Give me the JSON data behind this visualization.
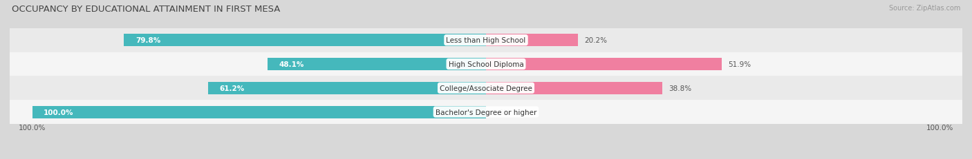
{
  "title": "OCCUPANCY BY EDUCATIONAL ATTAINMENT IN FIRST MESA",
  "source": "Source: ZipAtlas.com",
  "categories": [
    "Less than High School",
    "High School Diploma",
    "College/Associate Degree",
    "Bachelor's Degree or higher"
  ],
  "owner_values": [
    79.8,
    48.1,
    61.2,
    100.0
  ],
  "renter_values": [
    20.2,
    51.9,
    38.8,
    0.0
  ],
  "owner_color": "#45B8BC",
  "renter_color": "#F07FA0",
  "bar_height": 0.52,
  "title_fontsize": 9.5,
  "label_fontsize": 8,
  "value_fontsize": 7.5,
  "tick_fontsize": 7.5,
  "source_fontsize": 7,
  "legend_fontsize": 8,
  "row_colors": [
    "#f5f5f5",
    "#eaeaea",
    "#f5f5f5",
    "#eaeaea"
  ],
  "bg_color": "#d8d8d8"
}
